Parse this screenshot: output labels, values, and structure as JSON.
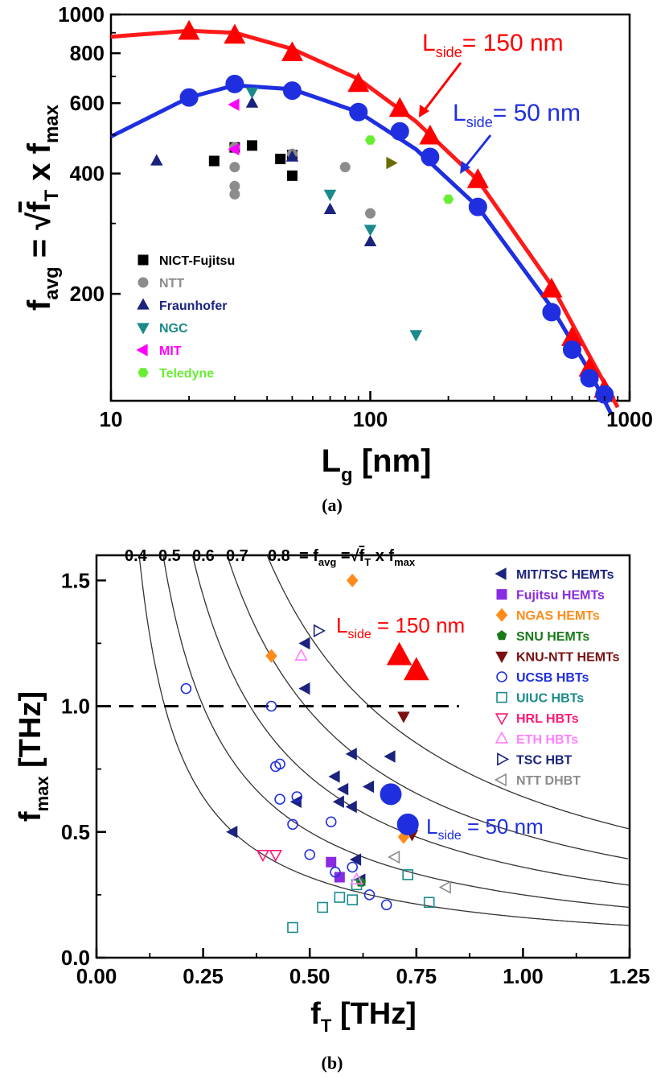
{
  "captions": {
    "a": "(a)",
    "b": "(b)"
  },
  "chart_data": [
    {
      "type": "scatter",
      "panel": "a",
      "xlabel": {
        "main": "L",
        "sub": "g",
        "unit": " [nm]"
      },
      "ylabel": {
        "main": "f",
        "sub": "avg",
        "eq": " = ",
        "radicand": "f",
        "radicand_sub": "T",
        "times": " x ",
        "f2": "f",
        "f2_sub": "max"
      },
      "xscale": "log",
      "yscale": "log",
      "xlim": [
        10,
        1000
      ],
      "ylim": [
        108,
        1000
      ],
      "xticks": [
        10,
        100,
        1000
      ],
      "xtick_labels": [
        "10",
        "100",
        "1000"
      ],
      "yticks": [
        200,
        400,
        600,
        800,
        1000
      ],
      "ytick_labels": [
        "200",
        "400",
        "600",
        "800",
        "1000"
      ],
      "legend_position": "bottom-left",
      "series": [
        {
          "name": "NICT-Fujitsu",
          "marker": "square",
          "color": "#000000",
          "x": [
            25,
            30,
            35,
            45,
            50,
            50
          ],
          "y": [
            430,
            465,
            470,
            435,
            395,
            445
          ]
        },
        {
          "name": "NTT",
          "marker": "circle",
          "color": "#8c8c8c",
          "x": [
            30,
            30,
            30,
            30,
            50,
            80,
            100
          ],
          "y": [
            465,
            415,
            372,
            355,
            448,
            415,
            318
          ]
        },
        {
          "name": "Fraunhofer",
          "marker": "triangle-up",
          "color": "#1a237e",
          "x": [
            15,
            35,
            50,
            70,
            100
          ],
          "y": [
            430,
            600,
            440,
            325,
            270
          ]
        },
        {
          "name": "NGC",
          "marker": "triangle-down",
          "color": "#1a8a8a",
          "x": [
            35,
            70,
            100,
            150
          ],
          "y": [
            640,
            355,
            290,
            158
          ]
        },
        {
          "name": "MIT",
          "marker": "triangle-left",
          "color": "#ff00ff",
          "x": [
            30,
            30
          ],
          "y": [
            595,
            460
          ]
        },
        {
          "name": "Teledyne",
          "marker": "hexagon",
          "color": "#66ee33",
          "x": [
            100,
            200
          ],
          "y": [
            485,
            345
          ]
        },
        {
          "name": "",
          "marker": "triangle-right",
          "color": "#6b6b00",
          "x": [
            120
          ],
          "y": [
            425
          ]
        },
        {
          "name": "L_side = 150 nm (data)",
          "marker": "triangle-up",
          "color": "#ff0000",
          "x": [
            20,
            30,
            50,
            90,
            130,
            170,
            260,
            500,
            600,
            700,
            800
          ],
          "y": [
            905,
            885,
            800,
            670,
            580,
            495,
            385,
            205,
            155,
            130,
            115
          ]
        },
        {
          "name": "L_side = 50 nm (data)",
          "marker": "circle",
          "color": "#1f2fe0",
          "x": [
            20,
            30,
            50,
            90,
            130,
            170,
            260,
            500,
            600,
            700,
            800
          ],
          "y": [
            620,
            670,
            645,
            570,
            510,
            440,
            330,
            180,
            145,
            123,
            112
          ]
        }
      ],
      "fits": [
        {
          "name": "L_side = 150 nm",
          "color": "#ff1a1a",
          "x": [
            10,
            20,
            30,
            50,
            90,
            150,
            260,
            500,
            700,
            900
          ],
          "y": [
            880,
            910,
            900,
            820,
            690,
            540,
            385,
            210,
            140,
            104
          ]
        },
        {
          "name": "L_side = 50 nm",
          "color": "#1f2fe0",
          "x": [
            10,
            20,
            30,
            50,
            90,
            150,
            260,
            500,
            700,
            850
          ],
          "y": [
            495,
            620,
            665,
            650,
            570,
            460,
            330,
            185,
            128,
            100
          ]
        }
      ],
      "annotations": [
        {
          "main": "L",
          "sub": "side",
          "rest": "= 150 nm",
          "color": "#ff0000"
        },
        {
          "main": "L",
          "sub": "side",
          "rest": "= 50 nm",
          "color": "#1f2fe0"
        }
      ]
    },
    {
      "type": "scatter",
      "panel": "b",
      "xlabel": {
        "main": "f",
        "sub": "T",
        "unit": " [THz]"
      },
      "ylabel": {
        "main": "f",
        "sub": "max",
        "unit": " [THz]"
      },
      "xlim": [
        0,
        1.25
      ],
      "ylim": [
        0,
        1.6
      ],
      "xticks": [
        0,
        0.25,
        0.5,
        0.75,
        1.0,
        1.25
      ],
      "xtick_labels": [
        "0.00",
        "0.25",
        "0.50",
        "0.75",
        "1.00",
        "1.25"
      ],
      "yticks": [
        0,
        0.5,
        1.0,
        1.5
      ],
      "ytick_labels": [
        "0.0",
        "0.5",
        "1.0",
        "1.5"
      ],
      "iso_favg": [
        0.4,
        0.5,
        0.6,
        0.7,
        0.8
      ],
      "iso_header": {
        "values": [
          "0.4",
          "0.5",
          "0.6",
          "0.7",
          "0.8"
        ],
        "eq": "= f",
        "eq_sub": "avg",
        "eq2": " =",
        "radicand": "f",
        "radicand_sub": "T",
        "times": " x f",
        "f2_sub": "max"
      },
      "reference_line": {
        "y": 1.0,
        "x": [
          0,
          0.85
        ],
        "style": "dashed"
      },
      "legend_position": "top-right",
      "series": [
        {
          "name": "MIT/TSC HEMTs",
          "marker": "triangle-left",
          "fill": true,
          "color": "#1a237e",
          "x": [
            0.32,
            0.47,
            0.49,
            0.49,
            0.56,
            0.57,
            0.58,
            0.6,
            0.6,
            0.61,
            0.62,
            0.64,
            0.69
          ],
          "y": [
            0.5,
            0.62,
            1.07,
            1.25,
            0.72,
            0.62,
            0.67,
            0.81,
            0.6,
            0.39,
            0.31,
            0.68,
            0.8
          ]
        },
        {
          "name": "Fujitsu HEMTs",
          "marker": "square",
          "fill": true,
          "color": "#8a2be2",
          "x": [
            0.55,
            0.57
          ],
          "y": [
            0.38,
            0.32
          ]
        },
        {
          "name": "NGAS HEMTs",
          "marker": "diamond",
          "fill": true,
          "color": "#ff8c1a",
          "x": [
            0.41,
            0.6,
            0.72
          ],
          "y": [
            1.2,
            1.5,
            0.48
          ]
        },
        {
          "name": "SNU HEMTs",
          "marker": "pentagon",
          "fill": true,
          "color": "#1a7a1a",
          "x": [
            0.62
          ],
          "y": [
            0.3
          ]
        },
        {
          "name": "KNU-NTT HEMTs",
          "marker": "triangle-down",
          "fill": true,
          "color": "#7a1010",
          "x": [
            0.72,
            0.74
          ],
          "y": [
            0.96,
            0.49
          ]
        },
        {
          "name": "UCSB HBTs",
          "marker": "circle",
          "fill": false,
          "color": "#1f2fe0",
          "x": [
            0.21,
            0.41,
            0.42,
            0.43,
            0.43,
            0.46,
            0.47,
            0.5,
            0.55,
            0.56,
            0.6,
            0.64,
            0.68
          ],
          "y": [
            1.07,
            1.0,
            0.76,
            0.77,
            0.63,
            0.53,
            0.64,
            0.41,
            0.54,
            0.34,
            0.36,
            0.25,
            0.21
          ]
        },
        {
          "name": "UIUC HBTs",
          "marker": "square",
          "fill": false,
          "color": "#1a8a8a",
          "x": [
            0.46,
            0.53,
            0.57,
            0.6,
            0.61,
            0.73,
            0.78
          ],
          "y": [
            0.12,
            0.2,
            0.24,
            0.23,
            0.29,
            0.33,
            0.22
          ]
        },
        {
          "name": "HRL HBTs",
          "marker": "triangle-down",
          "fill": false,
          "color": "#ff1a75",
          "x": [
            0.39,
            0.42
          ],
          "y": [
            0.41,
            0.41
          ]
        },
        {
          "name": "ETH HBTs",
          "marker": "triangle-up",
          "fill": false,
          "color": "#ff80ff",
          "x": [
            0.48,
            0.61
          ],
          "y": [
            1.2,
            0.31
          ]
        },
        {
          "name": "TSC HBT",
          "marker": "triangle-right",
          "fill": false,
          "color": "#1a237e",
          "x": [
            0.52
          ],
          "y": [
            1.3
          ]
        },
        {
          "name": "NTT DHBT",
          "marker": "triangle-left",
          "fill": false,
          "color": "#8c8c8c",
          "x": [
            0.7,
            0.82
          ],
          "y": [
            0.4,
            0.28
          ]
        },
        {
          "name": "L_side = 150 nm (this work)",
          "marker": "triangle-up",
          "fill": true,
          "color": "#ff0000",
          "size": "large",
          "x": [
            0.71,
            0.75
          ],
          "y": [
            1.2,
            1.14
          ]
        },
        {
          "name": "L_side = 50 nm (this work)",
          "marker": "circle",
          "fill": true,
          "color": "#1f2fe0",
          "size": "large",
          "x": [
            0.69,
            0.73
          ],
          "y": [
            0.65,
            0.53
          ]
        }
      ],
      "annotations": [
        {
          "main": "L",
          "sub": "side",
          "rest": " = 150 nm",
          "color": "#ff0000"
        },
        {
          "main": "L",
          "sub": "side",
          "rest": " = 50 nm",
          "color": "#1f2fe0"
        }
      ]
    }
  ]
}
